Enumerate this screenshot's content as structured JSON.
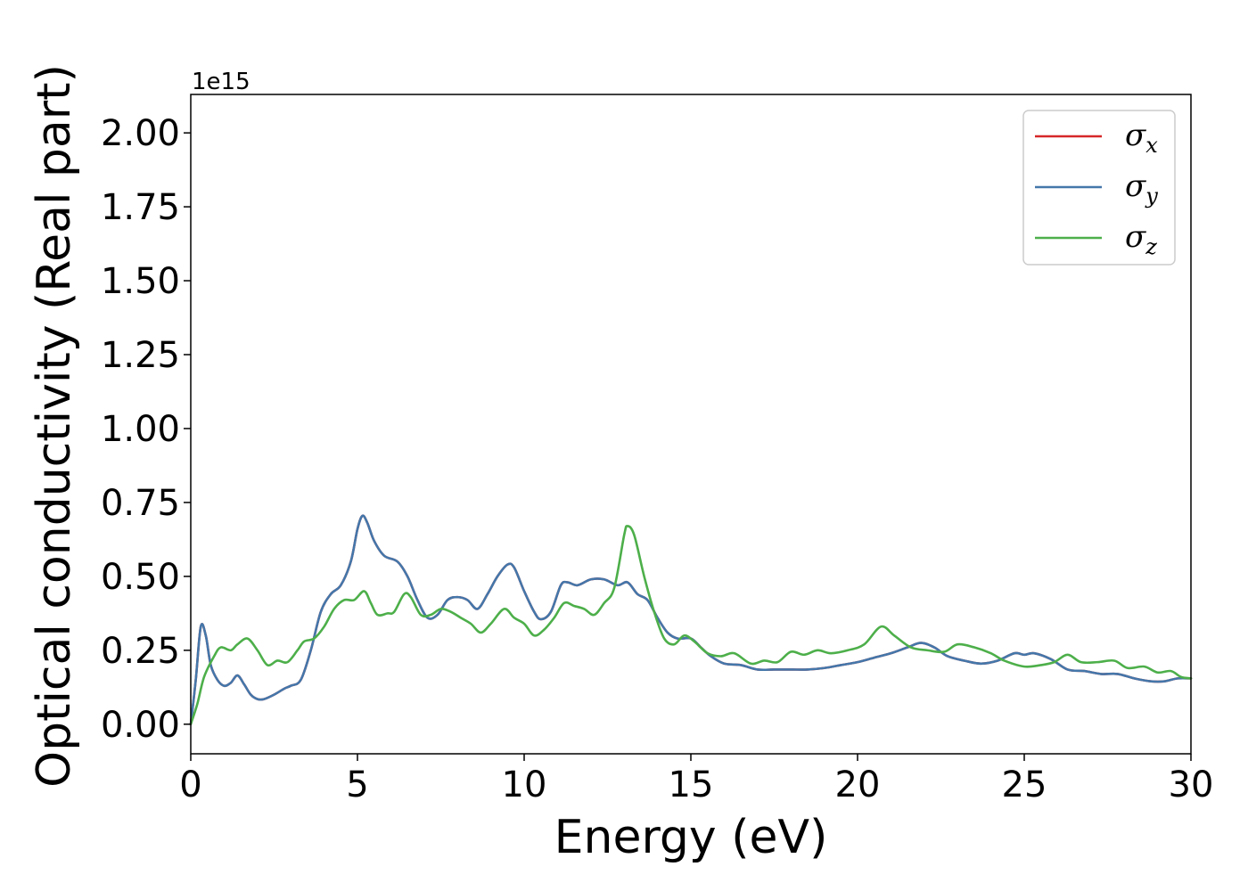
{
  "chart_data": {
    "type": "line",
    "xlabel": "Energy (eV)",
    "ylabel": "Optical conductivity (Real part)",
    "offset_text": "1e15",
    "scale": 1000000000000000.0,
    "xlim": [
      0,
      30
    ],
    "ylim": [
      -0.1,
      2.13
    ],
    "xticks": [
      0,
      5,
      10,
      15,
      20,
      25,
      30
    ],
    "xtick_labels": [
      "0",
      "5",
      "10",
      "15",
      "20",
      "25",
      "30"
    ],
    "yticks": [
      0.0,
      0.25,
      0.5,
      0.75,
      1.0,
      1.25,
      1.5,
      1.75,
      2.0
    ],
    "ytick_labels": [
      "0.00",
      "0.25",
      "0.50",
      "0.75",
      "1.00",
      "1.25",
      "1.50",
      "1.75",
      "2.00"
    ],
    "grid": false,
    "legend_position": "top-right",
    "series": [
      {
        "name": "σx",
        "symbol": "σ",
        "subscript": "x",
        "color": "#d62728",
        "points": [
          [
            0,
            0
          ],
          [
            0.15,
            0.15
          ],
          [
            0.3,
            0.33
          ],
          [
            0.45,
            0.3
          ],
          [
            0.6,
            0.2
          ],
          [
            0.8,
            0.15
          ],
          [
            1.0,
            0.13
          ],
          [
            1.2,
            0.14
          ],
          [
            1.4,
            0.165
          ],
          [
            1.6,
            0.135
          ],
          [
            1.8,
            0.1
          ],
          [
            2.0,
            0.085
          ],
          [
            2.2,
            0.085
          ],
          [
            2.5,
            0.1
          ],
          [
            2.8,
            0.12
          ],
          [
            3.0,
            0.13
          ],
          [
            3.3,
            0.15
          ],
          [
            3.6,
            0.25
          ],
          [
            3.9,
            0.38
          ],
          [
            4.2,
            0.44
          ],
          [
            4.5,
            0.47
          ],
          [
            4.8,
            0.55
          ],
          [
            5.0,
            0.66
          ],
          [
            5.15,
            0.705
          ],
          [
            5.3,
            0.68
          ],
          [
            5.5,
            0.62
          ],
          [
            5.8,
            0.57
          ],
          [
            6.2,
            0.55
          ],
          [
            6.5,
            0.5
          ],
          [
            6.8,
            0.42
          ],
          [
            7.1,
            0.36
          ],
          [
            7.4,
            0.37
          ],
          [
            7.7,
            0.42
          ],
          [
            8.0,
            0.43
          ],
          [
            8.3,
            0.42
          ],
          [
            8.6,
            0.39
          ],
          [
            8.9,
            0.44
          ],
          [
            9.2,
            0.5
          ],
          [
            9.5,
            0.54
          ],
          [
            9.7,
            0.53
          ],
          [
            10.0,
            0.45
          ],
          [
            10.3,
            0.38
          ],
          [
            10.5,
            0.355
          ],
          [
            10.8,
            0.38
          ],
          [
            11.1,
            0.47
          ],
          [
            11.3,
            0.48
          ],
          [
            11.6,
            0.47
          ],
          [
            12.0,
            0.49
          ],
          [
            12.4,
            0.49
          ],
          [
            12.8,
            0.47
          ],
          [
            13.1,
            0.48
          ],
          [
            13.4,
            0.44
          ],
          [
            13.7,
            0.42
          ],
          [
            14.0,
            0.36
          ],
          [
            14.3,
            0.31
          ],
          [
            14.6,
            0.29
          ],
          [
            15.0,
            0.29
          ],
          [
            15.3,
            0.26
          ],
          [
            15.6,
            0.23
          ],
          [
            16.0,
            0.205
          ],
          [
            16.5,
            0.2
          ],
          [
            17.0,
            0.185
          ],
          [
            17.5,
            0.185
          ],
          [
            18.0,
            0.185
          ],
          [
            18.5,
            0.185
          ],
          [
            19.0,
            0.19
          ],
          [
            19.5,
            0.2
          ],
          [
            20.0,
            0.21
          ],
          [
            20.5,
            0.225
          ],
          [
            21.0,
            0.24
          ],
          [
            21.5,
            0.26
          ],
          [
            21.9,
            0.275
          ],
          [
            22.3,
            0.26
          ],
          [
            22.7,
            0.23
          ],
          [
            23.2,
            0.215
          ],
          [
            23.7,
            0.205
          ],
          [
            24.2,
            0.215
          ],
          [
            24.7,
            0.24
          ],
          [
            25.0,
            0.235
          ],
          [
            25.3,
            0.24
          ],
          [
            25.8,
            0.22
          ],
          [
            26.3,
            0.185
          ],
          [
            26.8,
            0.18
          ],
          [
            27.3,
            0.17
          ],
          [
            27.8,
            0.17
          ],
          [
            28.3,
            0.155
          ],
          [
            28.8,
            0.145
          ],
          [
            29.2,
            0.145
          ],
          [
            29.6,
            0.155
          ],
          [
            30.0,
            0.155
          ]
        ]
      },
      {
        "name": "σy",
        "symbol": "σ",
        "subscript": "y",
        "color": "#4477aa",
        "points": [
          [
            0,
            0
          ],
          [
            0.15,
            0.15
          ],
          [
            0.3,
            0.33
          ],
          [
            0.45,
            0.3
          ],
          [
            0.6,
            0.2
          ],
          [
            0.8,
            0.15
          ],
          [
            1.0,
            0.13
          ],
          [
            1.2,
            0.14
          ],
          [
            1.4,
            0.165
          ],
          [
            1.6,
            0.135
          ],
          [
            1.8,
            0.1
          ],
          [
            2.0,
            0.085
          ],
          [
            2.2,
            0.085
          ],
          [
            2.5,
            0.1
          ],
          [
            2.8,
            0.12
          ],
          [
            3.0,
            0.13
          ],
          [
            3.3,
            0.15
          ],
          [
            3.6,
            0.25
          ],
          [
            3.9,
            0.38
          ],
          [
            4.2,
            0.44
          ],
          [
            4.5,
            0.47
          ],
          [
            4.8,
            0.55
          ],
          [
            5.0,
            0.66
          ],
          [
            5.15,
            0.705
          ],
          [
            5.3,
            0.68
          ],
          [
            5.5,
            0.62
          ],
          [
            5.8,
            0.57
          ],
          [
            6.2,
            0.55
          ],
          [
            6.5,
            0.5
          ],
          [
            6.8,
            0.42
          ],
          [
            7.1,
            0.36
          ],
          [
            7.4,
            0.37
          ],
          [
            7.7,
            0.42
          ],
          [
            8.0,
            0.43
          ],
          [
            8.3,
            0.42
          ],
          [
            8.6,
            0.39
          ],
          [
            8.9,
            0.44
          ],
          [
            9.2,
            0.5
          ],
          [
            9.5,
            0.54
          ],
          [
            9.7,
            0.53
          ],
          [
            10.0,
            0.45
          ],
          [
            10.3,
            0.38
          ],
          [
            10.5,
            0.355
          ],
          [
            10.8,
            0.38
          ],
          [
            11.1,
            0.47
          ],
          [
            11.3,
            0.48
          ],
          [
            11.6,
            0.47
          ],
          [
            12.0,
            0.49
          ],
          [
            12.4,
            0.49
          ],
          [
            12.8,
            0.47
          ],
          [
            13.1,
            0.48
          ],
          [
            13.4,
            0.44
          ],
          [
            13.7,
            0.42
          ],
          [
            14.0,
            0.36
          ],
          [
            14.3,
            0.31
          ],
          [
            14.6,
            0.29
          ],
          [
            15.0,
            0.29
          ],
          [
            15.3,
            0.26
          ],
          [
            15.6,
            0.23
          ],
          [
            16.0,
            0.205
          ],
          [
            16.5,
            0.2
          ],
          [
            17.0,
            0.185
          ],
          [
            17.5,
            0.185
          ],
          [
            18.0,
            0.185
          ],
          [
            18.5,
            0.185
          ],
          [
            19.0,
            0.19
          ],
          [
            19.5,
            0.2
          ],
          [
            20.0,
            0.21
          ],
          [
            20.5,
            0.225
          ],
          [
            21.0,
            0.24
          ],
          [
            21.5,
            0.26
          ],
          [
            21.9,
            0.275
          ],
          [
            22.3,
            0.26
          ],
          [
            22.7,
            0.23
          ],
          [
            23.2,
            0.215
          ],
          [
            23.7,
            0.205
          ],
          [
            24.2,
            0.215
          ],
          [
            24.7,
            0.24
          ],
          [
            25.0,
            0.235
          ],
          [
            25.3,
            0.24
          ],
          [
            25.8,
            0.22
          ],
          [
            26.3,
            0.185
          ],
          [
            26.8,
            0.18
          ],
          [
            27.3,
            0.17
          ],
          [
            27.8,
            0.17
          ],
          [
            28.3,
            0.155
          ],
          [
            28.8,
            0.145
          ],
          [
            29.2,
            0.145
          ],
          [
            29.6,
            0.155
          ],
          [
            30.0,
            0.155
          ]
        ]
      },
      {
        "name": "σz",
        "symbol": "σ",
        "subscript": "z",
        "color": "#4daf4a",
        "points": [
          [
            0,
            0
          ],
          [
            0.2,
            0.07
          ],
          [
            0.4,
            0.16
          ],
          [
            0.7,
            0.23
          ],
          [
            0.9,
            0.26
          ],
          [
            1.2,
            0.25
          ],
          [
            1.4,
            0.27
          ],
          [
            1.7,
            0.29
          ],
          [
            2.0,
            0.25
          ],
          [
            2.3,
            0.2
          ],
          [
            2.6,
            0.215
          ],
          [
            2.9,
            0.21
          ],
          [
            3.2,
            0.25
          ],
          [
            3.4,
            0.28
          ],
          [
            3.7,
            0.29
          ],
          [
            4.0,
            0.33
          ],
          [
            4.3,
            0.39
          ],
          [
            4.6,
            0.42
          ],
          [
            4.9,
            0.42
          ],
          [
            5.2,
            0.45
          ],
          [
            5.4,
            0.41
          ],
          [
            5.6,
            0.37
          ],
          [
            5.9,
            0.375
          ],
          [
            6.1,
            0.38
          ],
          [
            6.4,
            0.44
          ],
          [
            6.6,
            0.43
          ],
          [
            6.9,
            0.37
          ],
          [
            7.2,
            0.37
          ],
          [
            7.5,
            0.39
          ],
          [
            7.8,
            0.38
          ],
          [
            8.1,
            0.36
          ],
          [
            8.4,
            0.34
          ],
          [
            8.7,
            0.31
          ],
          [
            9.0,
            0.34
          ],
          [
            9.4,
            0.39
          ],
          [
            9.7,
            0.36
          ],
          [
            10.0,
            0.34
          ],
          [
            10.3,
            0.3
          ],
          [
            10.6,
            0.32
          ],
          [
            10.9,
            0.36
          ],
          [
            11.2,
            0.41
          ],
          [
            11.5,
            0.4
          ],
          [
            11.8,
            0.39
          ],
          [
            12.1,
            0.37
          ],
          [
            12.4,
            0.41
          ],
          [
            12.7,
            0.46
          ],
          [
            13.0,
            0.64
          ],
          [
            13.1,
            0.67
          ],
          [
            13.3,
            0.64
          ],
          [
            13.6,
            0.5
          ],
          [
            13.9,
            0.38
          ],
          [
            14.2,
            0.29
          ],
          [
            14.5,
            0.27
          ],
          [
            14.8,
            0.3
          ],
          [
            15.1,
            0.28
          ],
          [
            15.5,
            0.24
          ],
          [
            15.9,
            0.23
          ],
          [
            16.3,
            0.24
          ],
          [
            16.8,
            0.205
          ],
          [
            17.2,
            0.215
          ],
          [
            17.6,
            0.21
          ],
          [
            18.0,
            0.245
          ],
          [
            18.4,
            0.235
          ],
          [
            18.8,
            0.25
          ],
          [
            19.2,
            0.24
          ],
          [
            19.7,
            0.25
          ],
          [
            20.2,
            0.27
          ],
          [
            20.7,
            0.33
          ],
          [
            21.1,
            0.3
          ],
          [
            21.6,
            0.26
          ],
          [
            22.1,
            0.25
          ],
          [
            22.6,
            0.245
          ],
          [
            23.0,
            0.27
          ],
          [
            23.5,
            0.26
          ],
          [
            24.0,
            0.24
          ],
          [
            24.4,
            0.215
          ],
          [
            25.0,
            0.195
          ],
          [
            25.5,
            0.2
          ],
          [
            25.9,
            0.21
          ],
          [
            26.3,
            0.235
          ],
          [
            26.7,
            0.21
          ],
          [
            27.2,
            0.21
          ],
          [
            27.7,
            0.215
          ],
          [
            28.1,
            0.19
          ],
          [
            28.6,
            0.195
          ],
          [
            29.0,
            0.175
          ],
          [
            29.4,
            0.18
          ],
          [
            29.7,
            0.16
          ],
          [
            30.0,
            0.155
          ]
        ]
      }
    ]
  }
}
